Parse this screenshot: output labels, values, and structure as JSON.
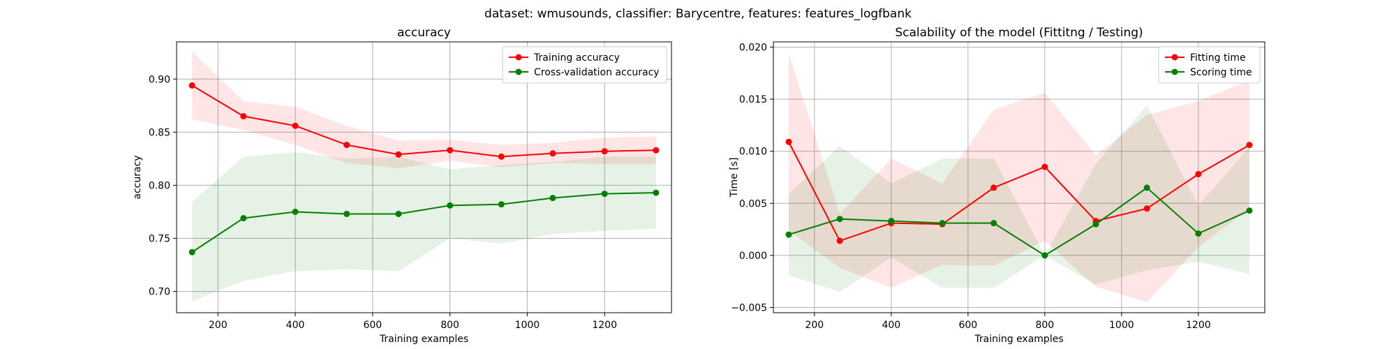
{
  "suptitle": "dataset: wmusounds, classifier: Barycentre, features: features_logfbank",
  "chart_data": [
    {
      "type": "line",
      "title": "accuracy",
      "xlabel": "Training examples",
      "ylabel": "accuracy",
      "xlim": [
        93,
        1373
      ],
      "ylim": [
        0.68,
        0.935
      ],
      "xticks": [
        200,
        400,
        600,
        800,
        1000,
        1200
      ],
      "yticks": [
        0.7,
        0.75,
        0.8,
        0.85,
        0.9
      ],
      "ytick_decimals": 2,
      "grid": true,
      "legend": "top-right",
      "x": [
        133,
        266,
        400,
        533,
        667,
        800,
        933,
        1066,
        1200,
        1333
      ],
      "series": [
        {
          "name": "Training accuracy",
          "color": "#ff0000",
          "band_color": "#ff0000",
          "values": [
            0.894,
            0.865,
            0.856,
            0.838,
            0.829,
            0.833,
            0.827,
            0.83,
            0.832,
            0.833
          ],
          "lower": [
            0.862,
            0.852,
            0.838,
            0.821,
            0.816,
            0.823,
            0.817,
            0.821,
            0.82,
            0.82
          ],
          "upper": [
            0.926,
            0.879,
            0.874,
            0.856,
            0.842,
            0.843,
            0.838,
            0.84,
            0.845,
            0.846
          ]
        },
        {
          "name": "Cross-validation accuracy",
          "color": "#008000",
          "band_color": "#008000",
          "values": [
            0.737,
            0.769,
            0.775,
            0.773,
            0.773,
            0.781,
            0.782,
            0.788,
            0.792,
            0.793
          ],
          "lower": [
            0.691,
            0.71,
            0.719,
            0.721,
            0.719,
            0.75,
            0.745,
            0.754,
            0.757,
            0.759
          ],
          "upper": [
            0.784,
            0.827,
            0.831,
            0.825,
            0.827,
            0.815,
            0.819,
            0.822,
            0.827,
            0.827
          ]
        }
      ]
    },
    {
      "type": "line",
      "title": "Scalability of the model (Fittitng / Testing)",
      "xlabel": "Training examples",
      "ylabel": "Time [s]",
      "xlim": [
        93,
        1373
      ],
      "ylim": [
        -0.0055,
        0.0205
      ],
      "xticks": [
        200,
        400,
        600,
        800,
        1000,
        1200
      ],
      "yticks": [
        -0.005,
        0.0,
        0.005,
        0.01,
        0.015,
        0.02
      ],
      "ytick_decimals": 3,
      "grid": true,
      "legend": "top-right",
      "x": [
        133,
        266,
        400,
        533,
        667,
        800,
        933,
        1066,
        1200,
        1333
      ],
      "series": [
        {
          "name": "Fitting time",
          "color": "#ff0000",
          "band_color": "#ff0000",
          "values": [
            0.0109,
            0.0014,
            0.0031,
            0.003,
            0.0065,
            0.0085,
            0.0033,
            0.0045,
            0.0078,
            0.0106
          ],
          "lower": [
            0.0024,
            -0.0012,
            -0.0031,
            -0.0009,
            -0.001,
            0.0014,
            -0.003,
            -0.0045,
            0.0008,
            0.0045
          ],
          "upper": [
            0.0194,
            0.004,
            0.0093,
            0.0069,
            0.014,
            0.0156,
            0.0096,
            0.0135,
            0.0148,
            0.0168
          ]
        },
        {
          "name": "Scoring time",
          "color": "#008000",
          "band_color": "#008000",
          "values": [
            0.002,
            0.0035,
            0.0033,
            0.0031,
            0.0031,
            0.0,
            0.003,
            0.0065,
            0.0021,
            0.0043
          ],
          "lower": [
            -0.0019,
            -0.0035,
            -0.0002,
            -0.0031,
            -0.0031,
            -0.0,
            -0.0028,
            -0.0014,
            -0.0006,
            -0.0018
          ],
          "upper": [
            0.0059,
            0.0105,
            0.0069,
            0.0093,
            0.0093,
            0.0,
            0.0088,
            0.0144,
            0.0048,
            0.0104
          ]
        }
      ]
    }
  ]
}
